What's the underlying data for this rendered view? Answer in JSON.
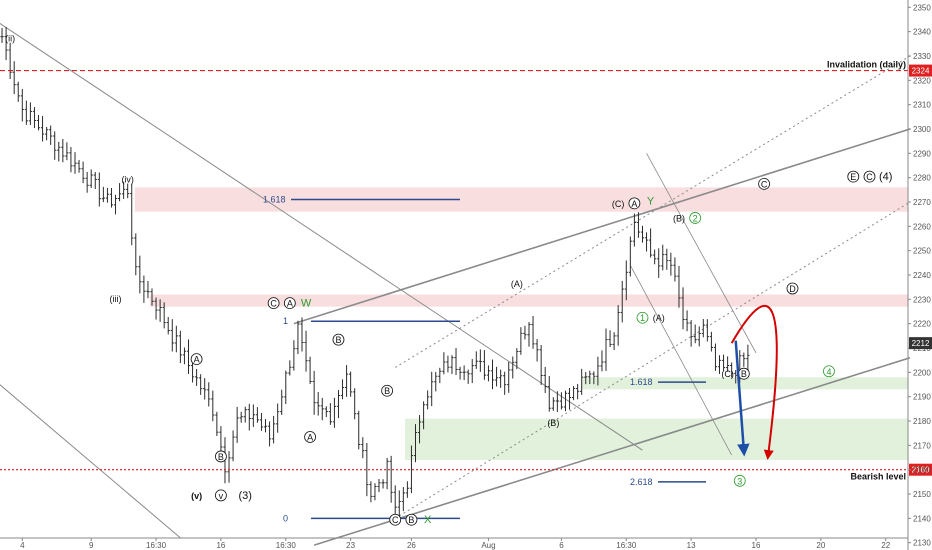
{
  "chart_data": {
    "type": "ohlc",
    "title": "",
    "xlabel": "",
    "ylabel": "",
    "ylim": [
      2127,
      2353
    ],
    "y_ticks": [
      2130,
      2140,
      2150,
      2160,
      2170,
      2180,
      2190,
      2200,
      2210,
      2220,
      2230,
      2240,
      2250,
      2260,
      2270,
      2280,
      2290,
      2300,
      2310,
      2320,
      2330,
      2340,
      2350
    ],
    "x_ticks": [
      "4",
      "9",
      "16:30",
      "16",
      "16:30",
      "23",
      "26",
      "Aug",
      "6",
      "16:30",
      "13",
      "16",
      "20",
      "22"
    ],
    "x_tick_index": [
      5,
      22,
      38,
      54,
      70,
      86,
      101,
      120,
      138,
      154,
      170,
      186,
      202,
      218
    ],
    "n_bars": 224,
    "price_segments": [
      [
        0,
        2338
      ],
      [
        5,
        2308
      ],
      [
        12,
        2296
      ],
      [
        20,
        2282
      ],
      [
        26,
        2270
      ],
      [
        31,
        2275
      ],
      [
        33,
        2240
      ],
      [
        38,
        2228
      ],
      [
        42,
        2215
      ],
      [
        47,
        2200
      ],
      [
        52,
        2185
      ],
      [
        55,
        2162
      ],
      [
        58,
        2180
      ],
      [
        62,
        2183
      ],
      [
        66,
        2173
      ],
      [
        70,
        2198
      ],
      [
        73,
        2218
      ],
      [
        77,
        2185
      ],
      [
        81,
        2183
      ],
      [
        85,
        2200
      ],
      [
        88,
        2172
      ],
      [
        91,
        2150
      ],
      [
        95,
        2160
      ],
      [
        97,
        2142
      ],
      [
        100,
        2155
      ],
      [
        104,
        2190
      ],
      [
        110,
        2204
      ],
      [
        118,
        2202
      ],
      [
        124,
        2198
      ],
      [
        130,
        2222
      ],
      [
        135,
        2188
      ],
      [
        140,
        2190
      ],
      [
        146,
        2200
      ],
      [
        151,
        2218
      ],
      [
        156,
        2262
      ],
      [
        160,
        2248
      ],
      [
        165,
        2244
      ],
      [
        168,
        2222
      ],
      [
        170,
        2212
      ],
      [
        173,
        2218
      ],
      [
        176,
        2202
      ],
      [
        180,
        2200
      ],
      [
        184,
        2207
      ]
    ],
    "current_price": "2212",
    "fib_levels": [
      {
        "label": "1.618",
        "value": 2271
      },
      {
        "label": "1",
        "value": 2221
      },
      {
        "label": "0",
        "value": 2140
      },
      {
        "label": "1.618",
        "value": 2196
      },
      {
        "label": "2.618",
        "value": 2155
      }
    ],
    "zones": [
      {
        "kind": "resistance",
        "from": 2266,
        "to": 2276
      },
      {
        "kind": "resistance",
        "from": 2227,
        "to": 2232
      },
      {
        "kind": "support",
        "from": 2164,
        "to": 2181
      },
      {
        "kind": "support",
        "from": 2193,
        "to": 2198
      }
    ],
    "levels": [
      {
        "label": "Invalidation (daily)",
        "value": 2324,
        "badge": "2324",
        "style": "dashed"
      },
      {
        "label": "Bearish level",
        "value": 2160,
        "badge": "2160",
        "style": "dotted"
      }
    ],
    "wave_labels": [
      {
        "text": "(ii)",
        "x": 2,
        "y": 2336
      },
      {
        "text": "(iv)",
        "x": 31,
        "y": 2278
      },
      {
        "text": "(iii)",
        "x": 28,
        "y": 2229
      },
      {
        "text": "A",
        "x": 48,
        "y": 2204
      },
      {
        "text": "B",
        "x": 54,
        "y": 2164
      },
      {
        "text": "(v)",
        "x": 48,
        "y": 2148
      },
      {
        "text": "v",
        "x": 54,
        "y": 2148
      },
      {
        "text": "(3)",
        "x": 60,
        "y": 2148
      },
      {
        "text": "C",
        "x": 67,
        "y": 2227
      },
      {
        "text": "A",
        "x": 71,
        "y": 2227
      },
      {
        "text": "W",
        "x": 75,
        "y": 2227
      },
      {
        "text": "B",
        "x": 83,
        "y": 2212
      },
      {
        "text": "A",
        "x": 76,
        "y": 2172
      },
      {
        "text": "B",
        "x": 95,
        "y": 2191
      },
      {
        "text": "C",
        "x": 97,
        "y": 2138
      },
      {
        "text": "B",
        "x": 101,
        "y": 2138
      },
      {
        "text": "X",
        "x": 105,
        "y": 2138
      },
      {
        "text": "(A)",
        "x": 127,
        "y": 2235
      },
      {
        "text": "(B)",
        "x": 136,
        "y": 2178
      },
      {
        "text": "(C)",
        "x": 152,
        "y": 2268
      },
      {
        "text": "A",
        "x": 156,
        "y": 2268
      },
      {
        "text": "Y",
        "x": 160,
        "y": 2269
      },
      {
        "text": "(B)",
        "x": 167,
        "y": 2262
      },
      {
        "text": "2",
        "x": 171,
        "y": 2262
      },
      {
        "text": "1",
        "x": 158,
        "y": 2221
      },
      {
        "text": "(A)",
        "x": 162,
        "y": 2221
      },
      {
        "text": "(C)",
        "x": 179,
        "y": 2198
      },
      {
        "text": "B",
        "x": 183,
        "y": 2198
      },
      {
        "text": "C",
        "x": 188,
        "y": 2276
      },
      {
        "text": "D",
        "x": 195,
        "y": 2233
      },
      {
        "text": "4",
        "x": 204,
        "y": 2199
      },
      {
        "text": "3",
        "x": 182,
        "y": 2154
      },
      {
        "text": "E",
        "x": 210,
        "y": 2279
      },
      {
        "text": "C",
        "x": 214,
        "y": 2279
      },
      {
        "text": "(4)",
        "x": 218,
        "y": 2279
      }
    ],
    "colors": {
      "bar": "#2b2b2b",
      "resistance": "#f7dadb",
      "support": "#dff0d8",
      "channel": "#8a8a8a",
      "fib": "#2c4a8c",
      "down_arrow": "#1d4fa8",
      "up_arrow": "#d40000",
      "level": "#e02020",
      "wave_green": "#2e9a2e"
    }
  }
}
